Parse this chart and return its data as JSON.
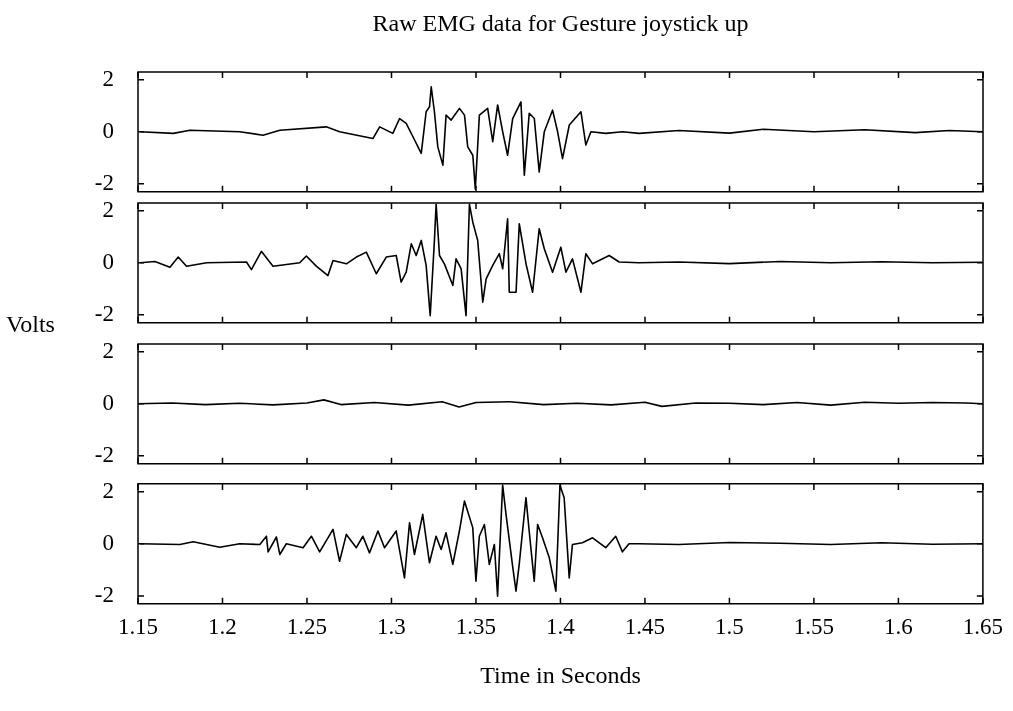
{
  "chart_data": [
    {
      "type": "line",
      "title": "Raw EMG data for Gesture joystick up",
      "xlim": [
        1.15,
        1.65
      ],
      "ylim": [
        -2.3,
        2.3
      ],
      "xticks": [
        1.15,
        1.2,
        1.25,
        1.3,
        1.35,
        1.4,
        1.45,
        1.5,
        1.55,
        1.6,
        1.65
      ],
      "yticks": [
        -2,
        0,
        2
      ],
      "tick_labels": "y",
      "x": [
        1.1512,
        1.1709,
        1.1807,
        1.2102,
        1.224,
        1.2339,
        1.2614,
        1.2693,
        1.289,
        1.293,
        1.3008,
        1.3048,
        1.3087,
        1.3127,
        1.3176,
        1.3205,
        1.3225,
        1.3235,
        1.3254,
        1.3274,
        1.3304,
        1.3323,
        1.3353,
        1.3402,
        1.3432,
        1.3451,
        1.3481,
        1.3496,
        1.352,
        1.3569,
        1.3599,
        1.3628,
        1.3658,
        1.3687,
        1.3717,
        1.3766,
        1.3786,
        1.3815,
        1.3845,
        1.3874,
        1.3904,
        1.3953,
        1.3983,
        1.4012,
        1.4052,
        1.4121,
        1.415,
        1.418,
        1.4268,
        1.4367,
        1.4465,
        1.47,
        1.5,
        1.52,
        1.55,
        1.58,
        1.61,
        1.63,
        1.65
      ],
      "series": [
        {
          "color": "#000000",
          "values": [
            0,
            -0.06,
            0.06,
            0,
            -0.13,
            0.06,
            0.19,
            0,
            -0.26,
            0.19,
            -0.06,
            0.51,
            0.32,
            -0.19,
            -0.83,
            0.77,
            0.96,
            1.73,
            0.77,
            -0.58,
            -1.28,
            0.64,
            0.45,
            0.9,
            0.64,
            -0.58,
            -0.9,
            -2.2,
            0.64,
            0.9,
            -0.38,
            1.03,
            0,
            -0.9,
            0.51,
            1.15,
            -1.67,
            0.71,
            0.51,
            -1.54,
            0,
            0.83,
            0,
            -1.03,
            0.26,
            0.77,
            -0.51,
            0,
            -0.06,
            0,
            -0.06,
            0.05,
            -0.05,
            0.1,
            0,
            0.08,
            -0.03,
            0.05,
            0
          ]
        }
      ]
    },
    {
      "type": "line",
      "ylabel": "Volts",
      "xlim": [
        1.15,
        1.65
      ],
      "ylim": [
        -2.3,
        2.3
      ],
      "xticks": [
        1.15,
        1.2,
        1.25,
        1.3,
        1.35,
        1.4,
        1.45,
        1.5,
        1.55,
        1.6,
        1.65
      ],
      "yticks": [
        -2,
        0,
        2
      ],
      "tick_labels": "y",
      "x": [
        1.1512,
        1.16,
        1.1689,
        1.1738,
        1.1787,
        1.1906,
        1.2142,
        1.2171,
        1.223,
        1.2299,
        1.2457,
        1.2496,
        1.2555,
        1.2624,
        1.2654,
        1.2733,
        1.2792,
        1.2851,
        1.291,
        1.2969,
        1.3028,
        1.3057,
        1.3087,
        1.3117,
        1.3146,
        1.3176,
        1.3205,
        1.3229,
        1.3254,
        1.3264,
        1.3284,
        1.3313,
        1.3363,
        1.3382,
        1.3412,
        1.3441,
        1.3461,
        1.3481,
        1.351,
        1.354,
        1.356,
        1.3599,
        1.3638,
        1.3658,
        1.3687,
        1.3697,
        1.3737,
        1.3756,
        1.3796,
        1.3835,
        1.3874,
        1.3904,
        1.3953,
        1.4002,
        1.4032,
        1.4071,
        1.4121,
        1.415,
        1.419,
        1.4288,
        1.4347,
        1.4465,
        1.47,
        1.5,
        1.53,
        1.56,
        1.59,
        1.62,
        1.65
      ],
      "series": [
        {
          "color": "#000000",
          "values": [
            0,
            0.05,
            -0.17,
            0.22,
            -0.13,
            0,
            0.03,
            -0.26,
            0.44,
            -0.13,
            0,
            0.26,
            -0.13,
            -0.49,
            0.09,
            -0.04,
            0.22,
            0.41,
            -0.42,
            0.22,
            0.28,
            -0.74,
            -0.36,
            0.73,
            0.28,
            0.86,
            -0.1,
            -2.03,
            0.86,
            2.25,
            0.28,
            -0.04,
            -0.87,
            0.15,
            -0.23,
            -2.03,
            2.25,
            1.56,
            0.86,
            -1.51,
            -0.62,
            -0.1,
            0.35,
            -0.23,
            1.69,
            -1.13,
            -1.13,
            1.5,
            -0.04,
            -1.13,
            1.31,
            0.54,
            -0.36,
            0.6,
            -0.36,
            0.15,
            -1.13,
            0.35,
            -0.04,
            0.28,
            0.03,
            0,
            0.03,
            -0.03,
            0.05,
            0,
            0.04,
            0,
            0.02
          ]
        }
      ]
    },
    {
      "type": "line",
      "xlim": [
        1.15,
        1.65
      ],
      "ylim": [
        -2.3,
        2.3
      ],
      "xticks": [
        1.15,
        1.2,
        1.25,
        1.3,
        1.35,
        1.4,
        1.45,
        1.5,
        1.55,
        1.6,
        1.65
      ],
      "yticks": [
        -2,
        0,
        2
      ],
      "tick_labels": "y",
      "x": [
        1.15,
        1.17,
        1.19,
        1.21,
        1.23,
        1.25,
        1.26,
        1.27,
        1.29,
        1.31,
        1.33,
        1.34,
        1.35,
        1.37,
        1.39,
        1.41,
        1.43,
        1.45,
        1.46,
        1.48,
        1.5,
        1.52,
        1.54,
        1.56,
        1.58,
        1.6,
        1.62,
        1.64,
        1.65
      ],
      "series": [
        {
          "color": "#000000",
          "values": [
            0,
            0.03,
            -0.03,
            0.02,
            -0.04,
            0.03,
            0.15,
            -0.03,
            0.05,
            -0.05,
            0.08,
            -0.12,
            0.05,
            0.08,
            -0.03,
            0.02,
            -0.04,
            0.06,
            -0.1,
            0.03,
            0.02,
            -0.03,
            0.05,
            -0.05,
            0.06,
            0.02,
            0.05,
            0.03,
            0
          ]
        }
      ]
    },
    {
      "type": "line",
      "xlabel": "Time in Seconds",
      "xlim": [
        1.15,
        1.65
      ],
      "ylim": [
        -2.3,
        2.3
      ],
      "xticks": [
        1.15,
        1.2,
        1.25,
        1.3,
        1.35,
        1.4,
        1.45,
        1.5,
        1.55,
        1.6,
        1.65
      ],
      "yticks": [
        -2,
        0,
        2
      ],
      "x": [
        1.1512,
        1.1748,
        1.1827,
        1.1984,
        1.2102,
        1.2221,
        1.226,
        1.227,
        1.2319,
        1.2339,
        1.2378,
        1.2477,
        1.2526,
        1.2575,
        1.2654,
        1.2693,
        1.2733,
        1.2792,
        1.2831,
        1.287,
        1.292,
        1.2959,
        1.3028,
        1.3077,
        1.3107,
        1.3136,
        1.3185,
        1.3225,
        1.3264,
        1.3294,
        1.3323,
        1.3363,
        1.3402,
        1.3432,
        1.3481,
        1.35,
        1.352,
        1.355,
        1.3579,
        1.3609,
        1.3628,
        1.3658,
        1.3678,
        1.3717,
        1.3737,
        1.3756,
        1.3796,
        1.3815,
        1.3845,
        1.3865,
        1.3894,
        1.3934,
        1.3973,
        1.3997,
        1.4022,
        1.4052,
        1.4071,
        1.413,
        1.419,
        1.4268,
        1.4327,
        1.4367,
        1.4406,
        1.4465,
        1.47,
        1.5,
        1.53,
        1.56,
        1.59,
        1.62,
        1.65
      ],
      "series": [
        {
          "color": "#000000",
          "values": [
            0,
            -0.03,
            0.08,
            -0.13,
            0,
            -0.03,
            0.29,
            -0.31,
            0.26,
            -0.41,
            0,
            -0.15,
            0.29,
            -0.31,
            0.55,
            -0.67,
            0.36,
            -0.15,
            0.29,
            -0.35,
            0.49,
            -0.15,
            0.49,
            -1.31,
            0.81,
            -0.41,
            1.13,
            -0.73,
            0.29,
            -0.22,
            0.42,
            -0.79,
            0.49,
            1.64,
            0.62,
            -1.44,
            0.29,
            0.74,
            -0.79,
            -0.03,
            -2.01,
            2.25,
            1.13,
            -0.86,
            -1.82,
            -0.79,
            1.77,
            0.49,
            -1.44,
            0.74,
            0.23,
            -0.54,
            -1.82,
            2.25,
            1.77,
            -1.31,
            -0.03,
            0.04,
            0.23,
            -0.15,
            0.29,
            -0.31,
            0,
            0,
            -0.03,
            0.05,
            0.02,
            -0.03,
            0.04,
            -0.02,
            0
          ]
        }
      ]
    }
  ]
}
